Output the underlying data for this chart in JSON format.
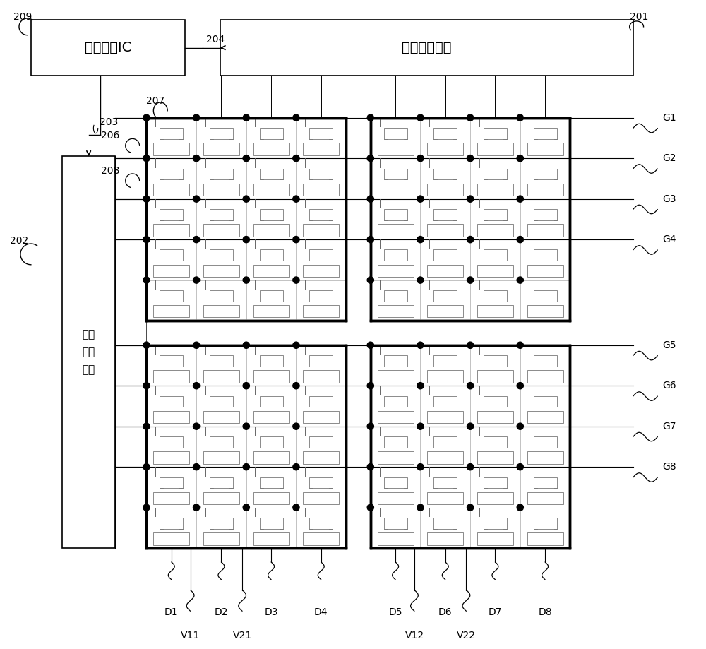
{
  "bg_color": "#ffffff",
  "line_color": "#000000",
  "grid_color": "#aaaaaa",
  "thick_line_color": "#000000",
  "timing_ic_label": "时序控制IC",
  "source_driver_label": "源极驱动单元",
  "gate_driver_label": "栅极\n驱动\n单元",
  "labels_201": "201",
  "labels_202": "202",
  "labels_203": "203",
  "labels_204": "204",
  "labels_206": "206",
  "labels_207": "207",
  "labels_208": "208",
  "labels_209": "209",
  "gate_labels": [
    "G1",
    "G2",
    "G3",
    "G4",
    "G5",
    "G6",
    "G7",
    "G8"
  ],
  "data_labels": [
    "D1",
    "D2",
    "D3",
    "D4",
    "D5",
    "D6",
    "D7",
    "D8"
  ],
  "v_labels": [
    "V11",
    "V21",
    "V12",
    "V22"
  ],
  "pan_rows": 5,
  "pan_cols": 4
}
